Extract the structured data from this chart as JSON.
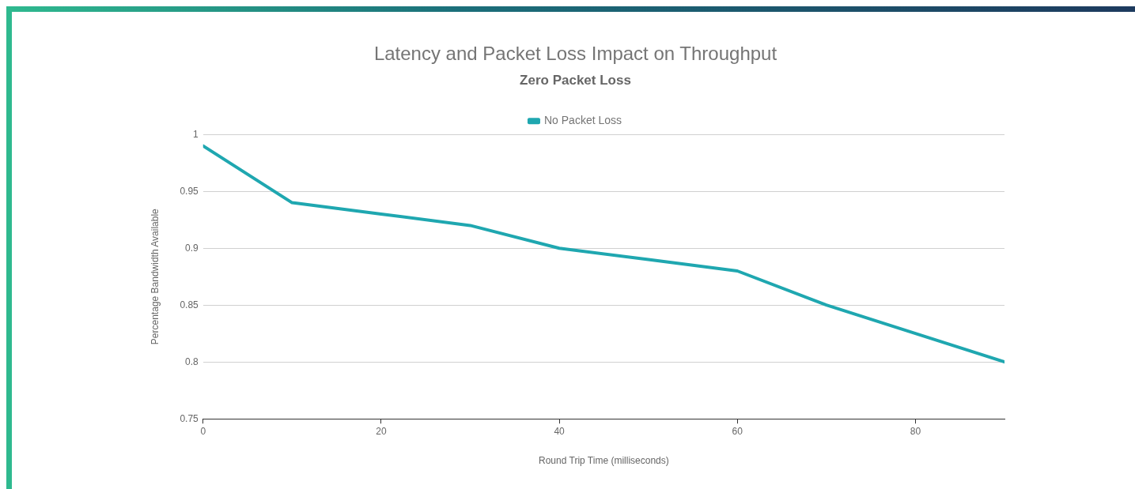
{
  "chart_data": {
    "type": "line",
    "title": "Latency and Packet Loss Impact on Throughput",
    "subtitle": "Zero Packet Loss",
    "xlabel": "Round Trip Time (milliseconds)",
    "ylabel": "Percentage Bandwidth Available",
    "x": [
      0,
      10,
      20,
      30,
      40,
      50,
      60,
      70,
      80,
      90
    ],
    "series": [
      {
        "name": "No Packet Loss",
        "color": "#1fa7b0",
        "values": [
          0.99,
          0.94,
          0.93,
          0.92,
          0.9,
          0.89,
          0.88,
          0.85,
          0.825,
          0.8
        ]
      }
    ],
    "xlim": [
      0,
      90
    ],
    "xticks": [
      0,
      20,
      40,
      60,
      80
    ],
    "ylim": [
      0.75,
      1
    ],
    "yticks": [
      0.75,
      0.8,
      0.85,
      0.9,
      0.95,
      1
    ],
    "grid": "y",
    "legend": "top",
    "marker": "none",
    "line_style": "solid"
  }
}
